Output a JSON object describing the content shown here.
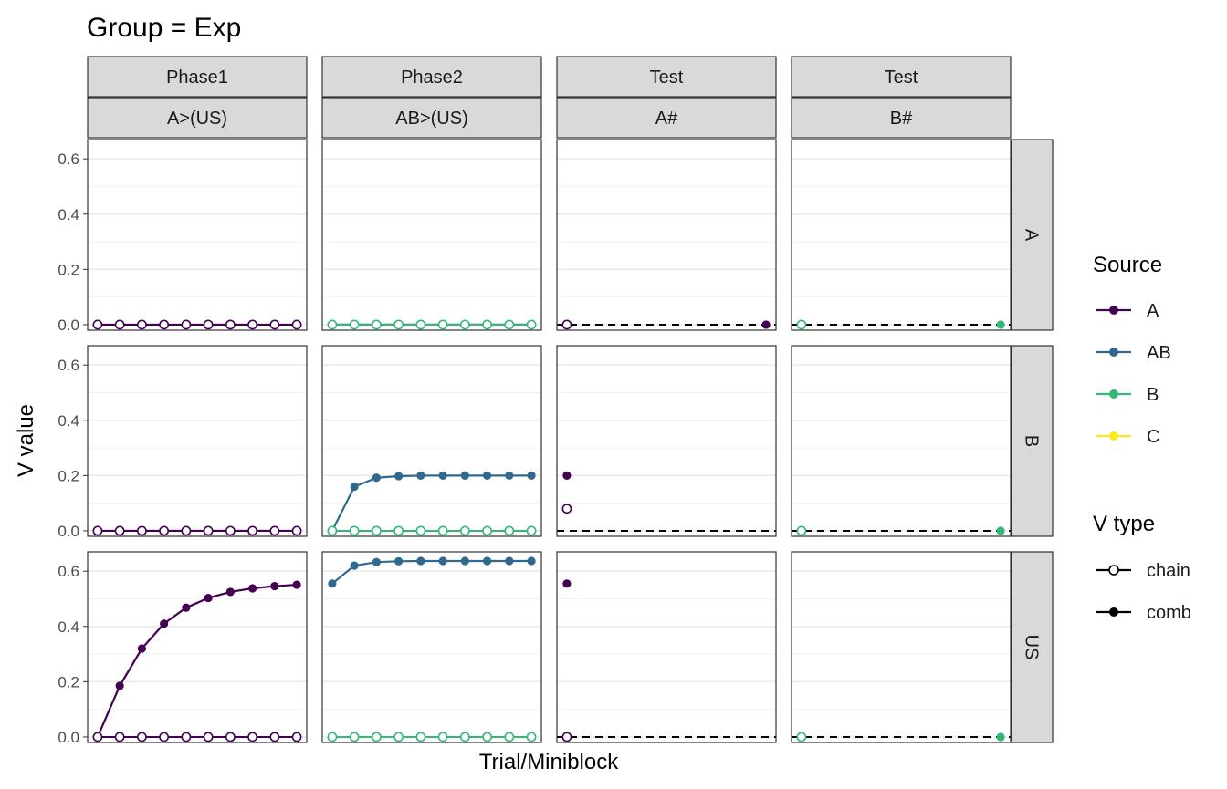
{
  "chart_data": {
    "type": "line",
    "title": "Group = Exp",
    "xlabel": "Trial/Miniblock",
    "ylabel": "V value",
    "ylim": [
      -0.02,
      0.67
    ],
    "yticks": [
      "0.0",
      "0.2",
      "0.4",
      "0.6"
    ],
    "column_strips": [
      {
        "phase": "Phase1",
        "design": "A>(US)"
      },
      {
        "phase": "Phase2",
        "design": "AB>(US)"
      },
      {
        "phase": "Test",
        "design": "A#"
      },
      {
        "phase": "Test",
        "design": "B#"
      }
    ],
    "row_strips": [
      "A",
      "B",
      "US"
    ],
    "source_colors": {
      "A": "#440154",
      "AB": "#31688E",
      "B": "#35B779",
      "C": "#FDE725"
    },
    "legend": {
      "source_title": "Source",
      "source_items": [
        "A",
        "AB",
        "B",
        "C"
      ],
      "vtype_title": "V type",
      "vtype_items": [
        "chain",
        "comb"
      ]
    },
    "panels": [
      {
        "row": 0,
        "col": 0,
        "x": [
          1,
          2,
          3,
          4,
          5,
          6,
          7,
          8,
          9,
          10
        ],
        "series": [
          {
            "source": "A",
            "vtype": "comb",
            "values": [
              0,
              0,
              0,
              0,
              0,
              0,
              0,
              0,
              0,
              0
            ]
          },
          {
            "source": "A",
            "vtype": "chain",
            "values": [
              0,
              0,
              0,
              0,
              0,
              0,
              0,
              0,
              0,
              0
            ]
          }
        ]
      },
      {
        "row": 0,
        "col": 1,
        "x": [
          1,
          2,
          3,
          4,
          5,
          6,
          7,
          8,
          9,
          10
        ],
        "series": [
          {
            "source": "A",
            "vtype": "comb",
            "values": [
              0,
              0,
              0,
              0,
              0,
              0,
              0,
              0,
              0,
              0
            ]
          },
          {
            "source": "AB",
            "vtype": "comb",
            "values": [
              0,
              0,
              0,
              0,
              0,
              0,
              0,
              0,
              0,
              0
            ]
          },
          {
            "source": "B",
            "vtype": "chain",
            "values": [
              0,
              0,
              0,
              0,
              0,
              0,
              0,
              0,
              0,
              0
            ]
          }
        ]
      },
      {
        "row": 0,
        "col": 2,
        "x": [
          1,
          10
        ],
        "series": [
          {
            "source": "A",
            "vtype": "chain",
            "values": [
              0,
              null
            ]
          },
          {
            "source": "A",
            "vtype": "comb",
            "values": [
              null,
              0
            ]
          }
        ]
      },
      {
        "row": 0,
        "col": 3,
        "x": [
          1,
          10
        ],
        "series": [
          {
            "source": "B",
            "vtype": "chain",
            "values": [
              0,
              null
            ]
          },
          {
            "source": "B",
            "vtype": "comb",
            "values": [
              null,
              0
            ]
          }
        ]
      },
      {
        "row": 1,
        "col": 0,
        "x": [
          1,
          2,
          3,
          4,
          5,
          6,
          7,
          8,
          9,
          10
        ],
        "series": [
          {
            "source": "A",
            "vtype": "comb",
            "values": [
              0,
              0,
              0,
              0,
              0,
              0,
              0,
              0,
              0,
              0
            ]
          },
          {
            "source": "A",
            "vtype": "chain",
            "values": [
              0,
              0,
              0,
              0,
              0,
              0,
              0,
              0,
              0,
              0
            ]
          }
        ]
      },
      {
        "row": 1,
        "col": 1,
        "x": [
          1,
          2,
          3,
          4,
          5,
          6,
          7,
          8,
          9,
          10
        ],
        "series": [
          {
            "source": "AB",
            "vtype": "comb",
            "values": [
              0,
              0.16,
              0.192,
              0.198,
              0.2,
              0.2,
              0.2,
              0.2,
              0.2,
              0.2
            ]
          },
          {
            "source": "B",
            "vtype": "chain",
            "values": [
              0,
              0,
              0,
              0,
              0,
              0,
              0,
              0,
              0,
              0
            ]
          }
        ]
      },
      {
        "row": 1,
        "col": 2,
        "x": [
          1,
          10
        ],
        "series": [
          {
            "source": "A",
            "vtype": "comb",
            "values": [
              0.2,
              null
            ]
          },
          {
            "source": "A",
            "vtype": "chain",
            "values": [
              0.08,
              null
            ]
          }
        ]
      },
      {
        "row": 1,
        "col": 3,
        "x": [
          1,
          10
        ],
        "series": [
          {
            "source": "B",
            "vtype": "chain",
            "values": [
              0,
              null
            ]
          },
          {
            "source": "B",
            "vtype": "comb",
            "values": [
              null,
              0
            ]
          }
        ]
      },
      {
        "row": 2,
        "col": 0,
        "x": [
          1,
          2,
          3,
          4,
          5,
          6,
          7,
          8,
          9,
          10
        ],
        "series": [
          {
            "source": "A",
            "vtype": "comb",
            "values": [
              0,
              0.185,
              0.32,
              0.41,
              0.468,
              0.503,
              0.525,
              0.538,
              0.546,
              0.551
            ]
          },
          {
            "source": "A",
            "vtype": "chain",
            "values": [
              0,
              0,
              0,
              0,
              0,
              0,
              0,
              0,
              0,
              0
            ]
          }
        ]
      },
      {
        "row": 2,
        "col": 1,
        "x": [
          1,
          2,
          3,
          4,
          5,
          6,
          7,
          8,
          9,
          10
        ],
        "series": [
          {
            "source": "AB",
            "vtype": "comb",
            "values": [
              0.555,
              0.62,
              0.633,
              0.636,
              0.637,
              0.637,
              0.637,
              0.637,
              0.637,
              0.637
            ]
          },
          {
            "source": "B",
            "vtype": "chain",
            "values": [
              0,
              0,
              0,
              0,
              0,
              0,
              0,
              0,
              0,
              0
            ]
          }
        ]
      },
      {
        "row": 2,
        "col": 2,
        "x": [
          1,
          10
        ],
        "series": [
          {
            "source": "A",
            "vtype": "comb",
            "values": [
              0.555,
              null
            ]
          },
          {
            "source": "A",
            "vtype": "chain",
            "values": [
              0,
              null
            ]
          }
        ]
      },
      {
        "row": 2,
        "col": 3,
        "x": [
          1,
          10
        ],
        "series": [
          {
            "source": "B",
            "vtype": "chain",
            "values": [
              0,
              null
            ]
          },
          {
            "source": "B",
            "vtype": "comb",
            "values": [
              null,
              0
            ]
          }
        ]
      }
    ]
  }
}
